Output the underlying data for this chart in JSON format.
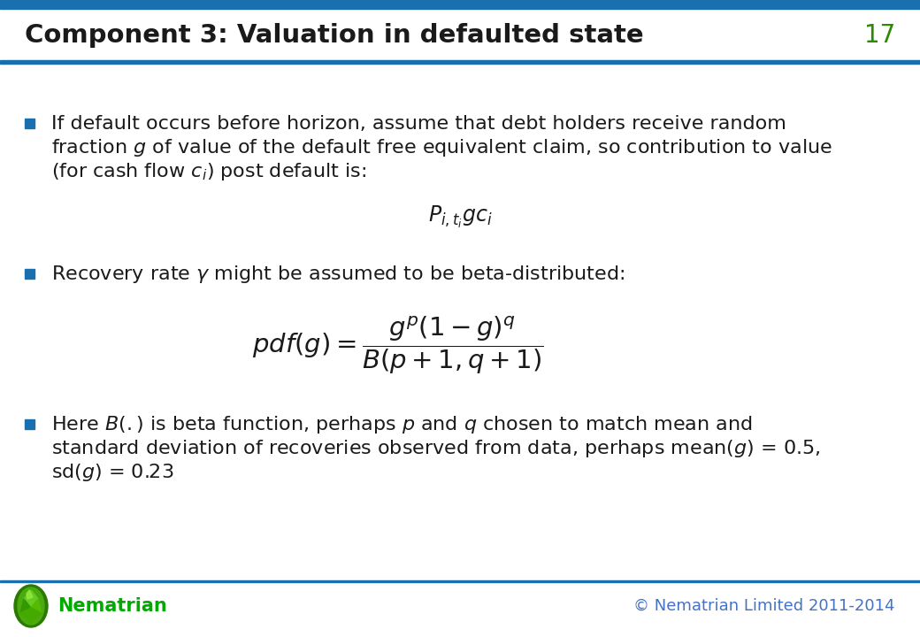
{
  "title": "Component 3: Valuation in defaulted state",
  "slide_number": "17",
  "title_color": "#1a1a1a",
  "accent_color": "#1a6faf",
  "bullet_color": "#1a6faf",
  "text_color": "#1a1a1a",
  "background_color": "#ffffff",
  "footer_left": "Nematrian",
  "footer_right": "© Nematrian Limited 2011-2014",
  "footer_color": "#4472c4",
  "nematrian_color": "#00aa00",
  "divider_color": "#1a6faf",
  "top_line_color": "#1a6faf",
  "title_fontsize": 21,
  "body_fontsize": 16,
  "formula_fontsize": 17,
  "slide_num_fontsize": 20,
  "footer_fontsize": 13,
  "footer_name_fontsize": 15
}
